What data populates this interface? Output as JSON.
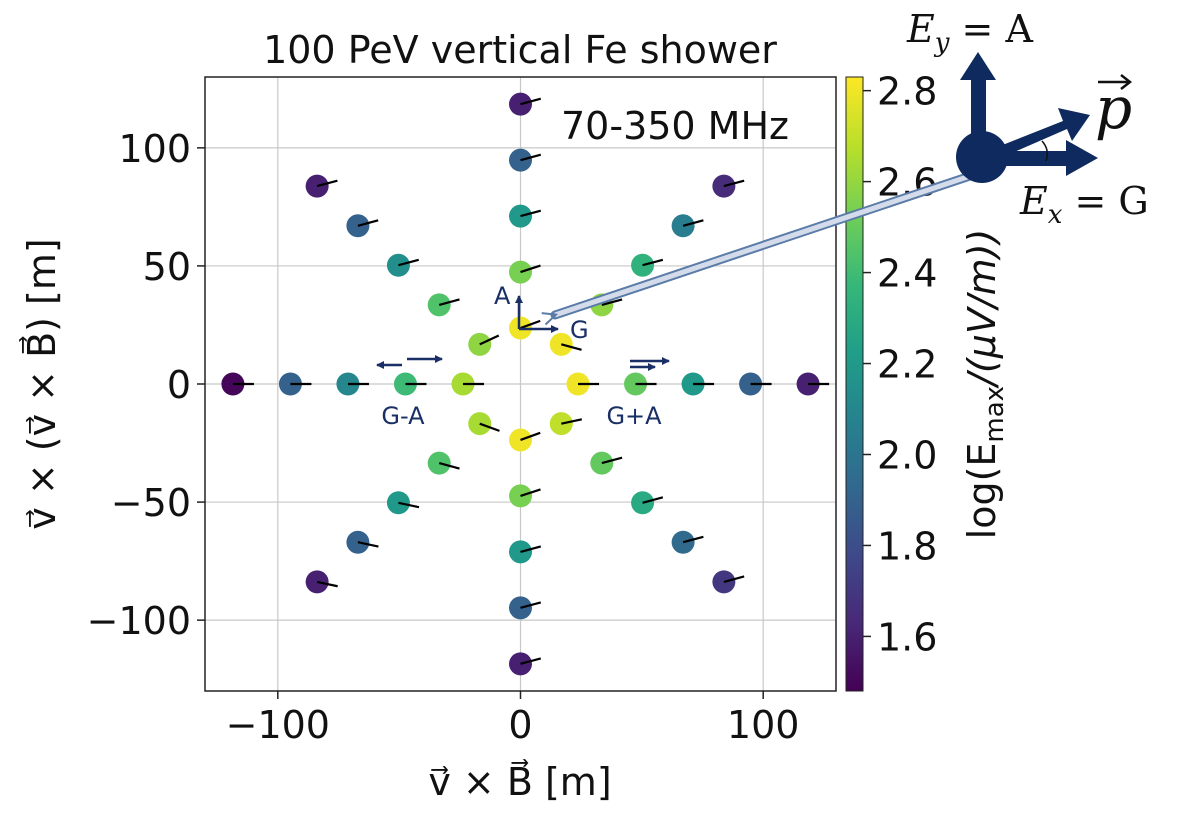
{
  "chart_data": {
    "type": "scatter",
    "title": "100 PeV vertical Fe shower",
    "subtitle": "70-350 MHz",
    "xlabel": "v⃗ × B⃗ [m]",
    "ylabel": "v⃗ × (v⃗ × B⃗) [m]",
    "xlim": [
      -130,
      130
    ],
    "ylim": [
      -130,
      130
    ],
    "xticks": [
      -100,
      0,
      100
    ],
    "xtick_labels": [
      "−100",
      "0",
      "100"
    ],
    "yticks": [
      -100,
      -50,
      0,
      50,
      100
    ],
    "ytick_labels": [
      "−100",
      "−50",
      "0",
      "50",
      "100"
    ],
    "grid": true,
    "colorbar": {
      "label": "log(E_max/(μV/m))",
      "label_prefix": "log(E",
      "label_sub": "max",
      "label_suffix": "/(μV/m))",
      "range": [
        1.48,
        2.83
      ],
      "ticks": [
        1.6,
        1.8,
        2.0,
        2.2,
        2.4,
        2.6,
        2.8
      ],
      "tick_labels": [
        "1.6",
        "1.8",
        "2.0",
        "2.2",
        "2.4",
        "2.6",
        "2.8"
      ],
      "colors": [
        "#440154",
        "#482878",
        "#3e4989",
        "#31688e",
        "#26828e",
        "#1f9e89",
        "#35b779",
        "#6ece58",
        "#b5de2b",
        "#fde725"
      ]
    },
    "pol_line_color": "#000000",
    "points": [
      {
        "x": 0,
        "y": 118.5,
        "v": 1.6,
        "ang": 15
      },
      {
        "x": 0,
        "y": 94.8,
        "v": 1.9,
        "ang": 15
      },
      {
        "x": 0,
        "y": 71.1,
        "v": 2.2,
        "ang": 15
      },
      {
        "x": 0,
        "y": 47.4,
        "v": 2.55,
        "ang": 18
      },
      {
        "x": 0,
        "y": 23.7,
        "v": 2.8,
        "ang": 20
      },
      {
        "x": 0,
        "y": -23.7,
        "v": 2.8,
        "ang": 20
      },
      {
        "x": 0,
        "y": -47.4,
        "v": 2.55,
        "ang": 18
      },
      {
        "x": 0,
        "y": -71.1,
        "v": 2.2,
        "ang": 15
      },
      {
        "x": 0,
        "y": -94.8,
        "v": 1.9,
        "ang": 15
      },
      {
        "x": 0,
        "y": -118.5,
        "v": 1.6,
        "ang": 15
      },
      {
        "x": -118.5,
        "y": 0,
        "v": 1.5,
        "ang": 0
      },
      {
        "x": -94.8,
        "y": 0,
        "v": 1.9,
        "ang": 0
      },
      {
        "x": -71.1,
        "y": 0,
        "v": 2.1,
        "ang": 0
      },
      {
        "x": -47.4,
        "y": 0,
        "v": 2.4,
        "ang": 0
      },
      {
        "x": -23.7,
        "y": 0,
        "v": 2.65,
        "ang": 0
      },
      {
        "x": 23.7,
        "y": 0,
        "v": 2.8,
        "ang": 0
      },
      {
        "x": 47.4,
        "y": 0,
        "v": 2.5,
        "ang": 0
      },
      {
        "x": 71.1,
        "y": 0,
        "v": 2.2,
        "ang": 0
      },
      {
        "x": 94.8,
        "y": 0,
        "v": 1.9,
        "ang": 0
      },
      {
        "x": 118.5,
        "y": 0,
        "v": 1.6,
        "ang": 0
      },
      {
        "x": -83.8,
        "y": 83.8,
        "v": 1.6,
        "ang": 15
      },
      {
        "x": -67.0,
        "y": 67.0,
        "v": 1.9,
        "ang": 15
      },
      {
        "x": -50.3,
        "y": 50.3,
        "v": 2.15,
        "ang": 15
      },
      {
        "x": -33.5,
        "y": 33.5,
        "v": 2.45,
        "ang": 15
      },
      {
        "x": -16.8,
        "y": 16.8,
        "v": 2.6,
        "ang": 25
      },
      {
        "x": 16.8,
        "y": 16.8,
        "v": 2.8,
        "ang": -15
      },
      {
        "x": 33.5,
        "y": 33.5,
        "v": 2.6,
        "ang": 15
      },
      {
        "x": 50.3,
        "y": 50.3,
        "v": 2.35,
        "ang": 15
      },
      {
        "x": 67.0,
        "y": 67.0,
        "v": 2.05,
        "ang": 15
      },
      {
        "x": 83.8,
        "y": 83.8,
        "v": 1.65,
        "ang": 15
      },
      {
        "x": -16.8,
        "y": -16.8,
        "v": 2.65,
        "ang": -20
      },
      {
        "x": -33.5,
        "y": -33.5,
        "v": 2.45,
        "ang": -15
      },
      {
        "x": -50.3,
        "y": -50.3,
        "v": 2.2,
        "ang": -12
      },
      {
        "x": -67.0,
        "y": -67.0,
        "v": 1.9,
        "ang": -12
      },
      {
        "x": -83.8,
        "y": -83.8,
        "v": 1.6,
        "ang": -12
      },
      {
        "x": 16.8,
        "y": -16.8,
        "v": 2.7,
        "ang": 12
      },
      {
        "x": 33.5,
        "y": -33.5,
        "v": 2.5,
        "ang": 15
      },
      {
        "x": 50.3,
        "y": -50.3,
        "v": 2.3,
        "ang": 15
      },
      {
        "x": 67.0,
        "y": -67.0,
        "v": 1.95,
        "ang": 15
      },
      {
        "x": 83.8,
        "y": -83.8,
        "v": 1.7,
        "ang": 15
      }
    ],
    "annotations": {
      "A": "A",
      "G": "G",
      "G_minus_A": "G-A",
      "G_plus_A": "G+A",
      "arrow_color": "#1a2f66"
    }
  },
  "inset": {
    "Ey_label": "E_y = A",
    "Ey_E": "E",
    "Ey_sub": "y",
    "Ey_eq": " = A",
    "Ex_label": "E_x = G",
    "Ex_E": "E",
    "Ex_sub": "x",
    "Ex_eq": " = G",
    "p_label": "p⃗",
    "p_char": "p",
    "color": "#0f2a5e"
  }
}
